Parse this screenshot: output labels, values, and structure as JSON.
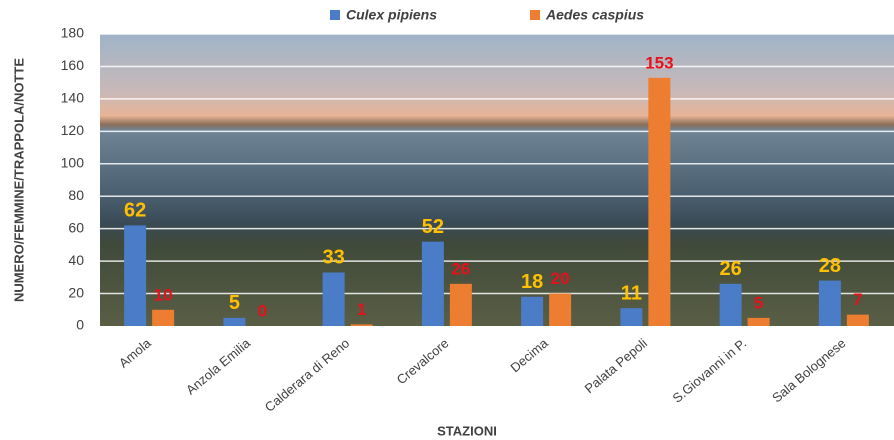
{
  "chart_data": {
    "type": "bar",
    "x_label": "STAZIONI",
    "y_label": "NUMERO/FEMMINE/TRAPPOLA/NOTTE",
    "categories": [
      "Amola",
      "Anzola Emilia",
      "Calderara di Reno",
      "Crevalcore",
      "Decima",
      "Palata Pepoli",
      "S.Giovanni in P.",
      "Sala Bolognese"
    ],
    "series": [
      {
        "name": "Culex pipiens",
        "color": "#4a7cc7",
        "label_color": "#ffc000",
        "values": [
          62,
          5,
          33,
          52,
          18,
          11,
          26,
          28
        ]
      },
      {
        "name": "Aedes caspius",
        "color": "#ed7d31",
        "label_color": "#e8101a",
        "values": [
          10,
          0,
          1,
          26,
          20,
          153,
          5,
          7
        ]
      }
    ],
    "ylim": [
      0,
      180
    ],
    "yticks": [
      0,
      20,
      40,
      60,
      80,
      100,
      120,
      140,
      160,
      180
    ],
    "grid": true
  }
}
